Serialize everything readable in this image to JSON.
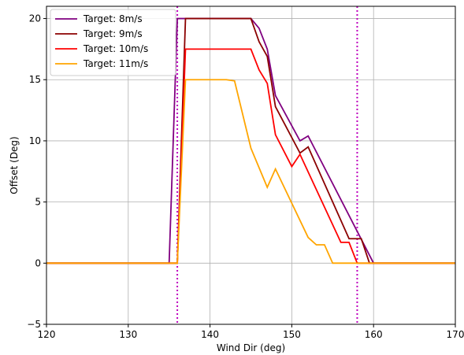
{
  "chart_data": {
    "type": "line",
    "title": "",
    "xlabel": "Wind Dir (deg)",
    "ylabel": "Offset (Deg)",
    "xlim": [
      120,
      170
    ],
    "ylim": [
      -5,
      21
    ],
    "xticks": [
      120,
      130,
      140,
      150,
      160,
      170
    ],
    "yticks": [
      -5,
      0,
      5,
      10,
      15,
      20
    ],
    "grid": true,
    "legend_position": "top-left",
    "series": [
      {
        "name": "Target: 8m/s",
        "color": "#800080",
        "x": [
          120,
          135,
          136,
          145,
          146,
          147,
          148,
          151,
          152,
          160,
          170
        ],
        "y": [
          0,
          0,
          20,
          20,
          19.2,
          17.5,
          13.7,
          10,
          10.4,
          0,
          0
        ]
      },
      {
        "name": "Target: 9m/s",
        "color": "#8b0000",
        "x": [
          120,
          136,
          137,
          145,
          146,
          147,
          148,
          151,
          152,
          157,
          158.5,
          159.5,
          170
        ],
        "y": [
          0,
          0,
          20,
          20,
          18.1,
          16.9,
          12.8,
          9,
          9.5,
          2,
          2,
          0,
          0
        ]
      },
      {
        "name": "Target: 10m/s",
        "color": "#ff0000",
        "x": [
          120,
          136,
          137,
          145,
          146,
          147,
          148,
          150,
          151,
          156,
          157,
          158,
          170
        ],
        "y": [
          0,
          0,
          17.5,
          17.5,
          15.8,
          14.7,
          10.5,
          7.9,
          8.9,
          1.7,
          1.7,
          0,
          0
        ]
      },
      {
        "name": "Target: 11m/s",
        "color": "#ffa500",
        "x": [
          120,
          136,
          137,
          142,
          143,
          145,
          147,
          148,
          152,
          153,
          154,
          155,
          170
        ],
        "y": [
          0,
          0,
          15,
          15,
          14.9,
          9.4,
          6.2,
          7.7,
          2.1,
          1.5,
          1.5,
          0,
          0
        ]
      }
    ],
    "vlines": [
      {
        "x": 136,
        "color": "#bf00bf"
      },
      {
        "x": 158,
        "color": "#bf00bf"
      }
    ]
  }
}
